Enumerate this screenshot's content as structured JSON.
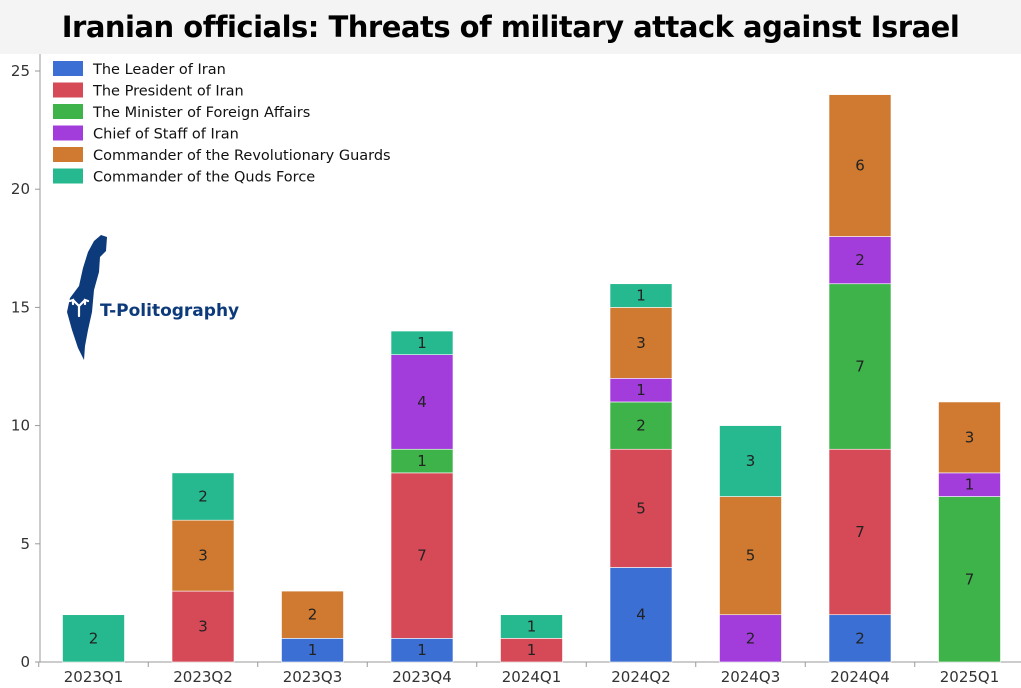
{
  "title": "Iranian officials: Threats of military attack against Israel",
  "logo": {
    "text": "T-Politography",
    "color": "#0d3a7a"
  },
  "chart_data": {
    "type": "bar",
    "stacked": true,
    "categories": [
      "2023Q1",
      "2023Q2",
      "2023Q3",
      "2023Q4",
      "2024Q1",
      "2024Q2",
      "2024Q3",
      "2024Q4",
      "2025Q1"
    ],
    "series": [
      {
        "name": "The Leader of Iran",
        "color": "#3b6fd4",
        "values": [
          0,
          0,
          1,
          1,
          0,
          4,
          0,
          2,
          0
        ]
      },
      {
        "name": "The President of Iran",
        "color": "#d64a58",
        "values": [
          0,
          3,
          0,
          7,
          1,
          5,
          0,
          7,
          0
        ]
      },
      {
        "name": "The Minister of Foreign Affairs",
        "color": "#3db34a",
        "values": [
          0,
          0,
          0,
          1,
          0,
          2,
          0,
          7,
          7
        ]
      },
      {
        "name": "Chief of Staff of Iran",
        "color": "#a23ddc",
        "values": [
          0,
          0,
          0,
          4,
          0,
          1,
          2,
          2,
          1
        ]
      },
      {
        "name": "Commander of the Revolutionary Guards",
        "color": "#cf7a30",
        "values": [
          0,
          3,
          2,
          0,
          0,
          3,
          5,
          6,
          3
        ]
      },
      {
        "name": "Commander of the Quds Force",
        "color": "#26b88e",
        "values": [
          2,
          2,
          0,
          1,
          1,
          1,
          3,
          0,
          0
        ]
      }
    ],
    "ylim": [
      0,
      26
    ],
    "yticks": [
      0,
      5,
      10,
      15,
      20,
      25
    ],
    "legend_position": "top-left",
    "grid": false
  }
}
